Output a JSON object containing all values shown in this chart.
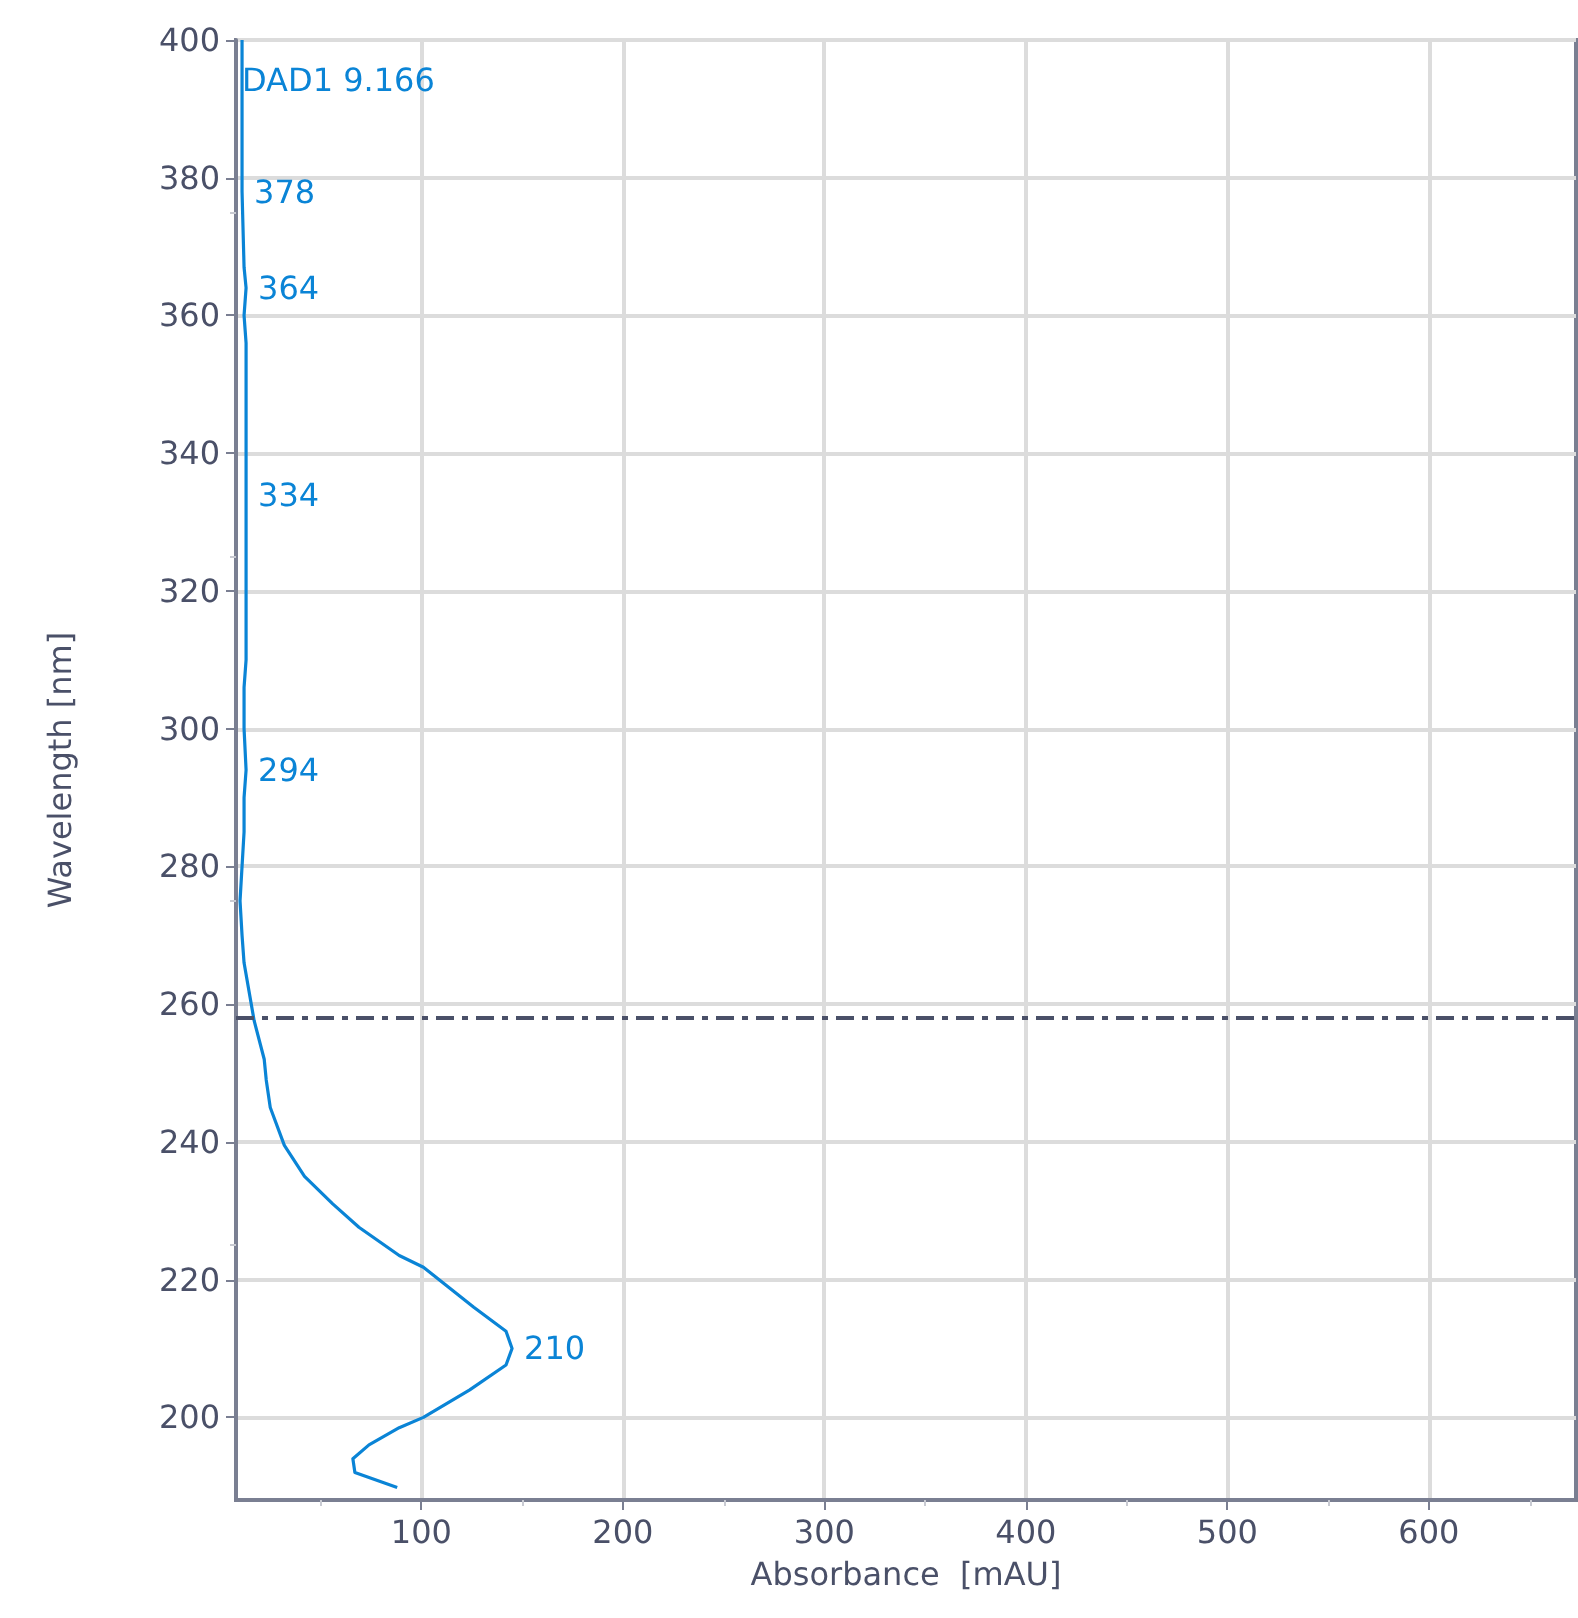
{
  "chart_data": {
    "type": "line",
    "xlabel": "Absorbance  [mAU]",
    "ylabel": "Wavelength [nm]",
    "series": [
      {
        "name": "DAD1 9.166",
        "color": "#0a84d6",
        "x": [
          88,
          67,
          66,
          74,
          89,
          101,
          124,
          142,
          145,
          142,
          126,
          101,
          89,
          69,
          56,
          42,
          32,
          25,
          23,
          22,
          17,
          12,
          11,
          10,
          11,
          12,
          12,
          13,
          12,
          12,
          13,
          13,
          13,
          13,
          13,
          12,
          13,
          12,
          11,
          11,
          11
        ],
        "values": [
          189.8,
          192,
          194,
          196,
          198.5,
          200,
          204,
          207.6,
          210,
          212.5,
          216,
          221.8,
          223.5,
          227.6,
          231,
          235,
          239.5,
          245,
          249,
          252,
          257.6,
          266,
          270,
          275,
          280,
          285,
          290,
          294,
          300,
          306,
          310,
          320,
          334,
          350,
          356,
          360,
          364,
          367,
          378,
          390,
          400
        ]
      }
    ],
    "annotations": [
      {
        "text": "210",
        "x": 145,
        "y": 210
      },
      {
        "text": "294",
        "x": 13,
        "y": 294
      },
      {
        "text": "334",
        "x": 13,
        "y": 334
      },
      {
        "text": "364",
        "x": 13,
        "y": 364
      },
      {
        "text": "378",
        "x": 11,
        "y": 378
      }
    ],
    "xlim": [
      8,
      673
    ],
    "xticks": [
      100,
      200,
      300,
      400,
      500,
      600
    ],
    "ylim": [
      188,
      400
    ],
    "yticks": [
      200,
      220,
      240,
      260,
      280,
      300,
      320,
      340,
      360,
      380,
      400
    ],
    "ref_lines": [
      {
        "axis": "y",
        "value": 258,
        "color": "#4a5068",
        "line_style": "dashed"
      }
    ],
    "grid": true,
    "legend": false,
    "marker": "none"
  }
}
